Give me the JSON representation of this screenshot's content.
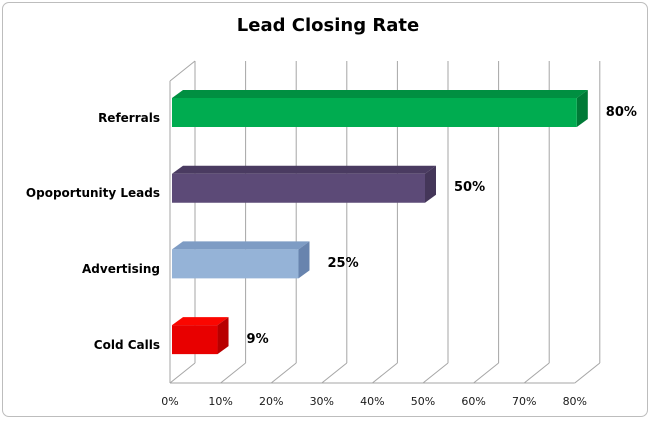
{
  "chart_data": {
    "type": "bar",
    "style": "3d-horizontal-bar",
    "title": "Lead Closing Rate",
    "categories": [
      "Referrals",
      "Opoportunity Leads",
      "Advertising",
      "Cold Calls"
    ],
    "values": [
      80,
      50,
      25,
      9
    ],
    "value_labels": [
      "80%",
      "50%",
      "25%",
      "9%"
    ],
    "series": [
      {
        "name": "Lead Closing Rate",
        "values": [
          80,
          50,
          25,
          9
        ]
      }
    ],
    "bar_colors": [
      {
        "front": "#00AC50",
        "top": "#008F41",
        "side": "#007A37"
      },
      {
        "front": "#5C4A77",
        "top": "#4A3B61",
        "side": "#443659"
      },
      {
        "front": "#95B3D7",
        "top": "#7E9CC4",
        "side": "#6884AE"
      },
      {
        "front": "#E80000",
        "top": "#FB0600",
        "side": "#B80000"
      }
    ],
    "xlabel": "",
    "ylabel": "",
    "x_ticks": [
      "0%",
      "10%",
      "20%",
      "30%",
      "40%",
      "50%",
      "60%",
      "70%",
      "80%"
    ],
    "x_tick_values": [
      0,
      10,
      20,
      30,
      40,
      50,
      60,
      70,
      80
    ],
    "xlim": [
      0,
      80
    ],
    "grid": "vertical gridlines on 3D back wall",
    "gridline_color": "#A6A6A6",
    "legend": "none",
    "background_color": "#FFFFFF",
    "frame_border_color": "#BDBDBD"
  }
}
